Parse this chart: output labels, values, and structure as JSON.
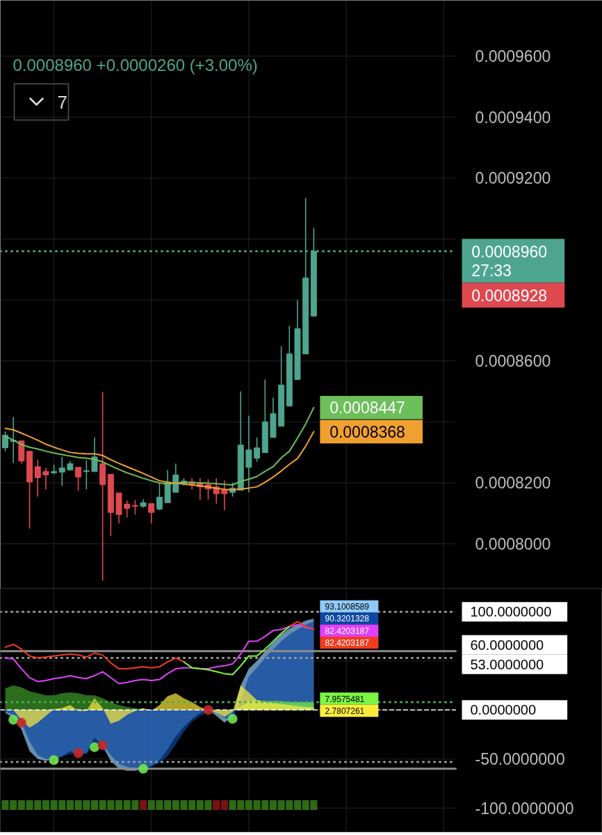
{
  "chart_data": [
    {
      "type": "candlestick",
      "subtitle": "0.0008960 +0.0000260 (+3.00%)",
      "annotations": [
        "0.0008928",
        "7"
      ],
      "categories": [
        null,
        null,
        null,
        null,
        null,
        null,
        null,
        null,
        null,
        null,
        null,
        null,
        null,
        null,
        null,
        null,
        null,
        null,
        null,
        null,
        null,
        null,
        null,
        null,
        null,
        null,
        null,
        null,
        null,
        null,
        null,
        null,
        null,
        null,
        null,
        null,
        null,
        null,
        null
      ],
      "ohlc": [
        [
          0.0008315,
          0.0008368,
          0.0008304,
          0.0008356
        ],
        [
          0.0008336,
          0.0008416,
          0.0008265,
          0.000834
        ],
        [
          0.0008338,
          0.0008338,
          0.0008263,
          0.0008272
        ],
        [
          0.0008304,
          0.0008304,
          0.000805,
          0.0008203
        ],
        [
          0.0008253,
          0.0008276,
          0.0008155,
          0.0008217
        ],
        [
          0.0008237,
          0.0008249,
          0.0008178,
          0.0008226
        ],
        [
          0.0008233,
          0.000826,
          0.0008228,
          0.0008237
        ],
        [
          0.0008235,
          0.0008285,
          0.000819,
          0.0008249
        ],
        [
          0.0008242,
          0.0008272,
          0.0008242,
          0.0008263
        ],
        [
          0.0008251,
          0.0008251,
          0.0008174,
          0.0008219
        ],
        [
          0.0008237,
          0.0008274,
          0.0008178,
          0.000824
        ],
        [
          0.0008237,
          0.0008349,
          0.0008237,
          0.0008285
        ],
        [
          0.0008263,
          0.0008498,
          0.0007879,
          0.0008194
        ],
        [
          0.0008228,
          0.0008228,
          0.0008025,
          0.0008103
        ],
        [
          0.0008167,
          0.0008167,
          0.0008067,
          0.0008096
        ],
        [
          0.000813,
          0.0008142,
          0.0008087,
          0.0008116
        ],
        [
          0.0008126,
          0.0008144,
          0.0008096,
          0.0008123
        ],
        [
          0.0008123,
          0.0008146,
          0.0008119,
          0.0008135
        ],
        [
          0.0008132,
          0.0008132,
          0.0008067,
          0.0008103
        ],
        [
          0.0008114,
          0.0008199,
          0.000811,
          0.0008153
        ],
        [
          0.0008135,
          0.0008242,
          0.0008135,
          0.0008203
        ],
        [
          0.0008169,
          0.0008263,
          0.0008169,
          0.0008226
        ],
        [
          0.0008196,
          0.0008215,
          0.0008192,
          0.0008206
        ],
        [
          0.0008203,
          0.0008215,
          0.0008178,
          0.0008194
        ],
        [
          0.0008199,
          0.0008215,
          0.0008144,
          0.0008187
        ],
        [
          0.0008194,
          0.0008212,
          0.0008146,
          0.000818
        ],
        [
          0.0008187,
          0.0008215,
          0.0008132,
          0.0008164
        ],
        [
          0.0008178,
          0.0008208,
          0.000811,
          0.0008164
        ],
        [
          0.0008169,
          0.0008201,
          0.0008155,
          0.0008183
        ],
        [
          0.0008176,
          0.00085,
          0.0008176,
          0.0008324
        ],
        [
          0.0008251,
          0.000842,
          0.0008169,
          0.0008308
        ],
        [
          0.0008281,
          0.0008349,
          0.0008269,
          0.0008315
        ],
        [
          0.0008299,
          0.0008539,
          0.0008299,
          0.00084
        ],
        [
          0.0008349,
          0.000848,
          0.0008349,
          0.0008427
        ],
        [
          0.0008386,
          0.0008648,
          0.0008386,
          0.0008521
        ],
        [
          0.0008452,
          0.0008715,
          0.0008452,
          0.0008623
        ],
        [
          0.0008539,
          0.0008799,
          0.0008539,
          0.0008706
        ],
        [
          0.0008623,
          0.0009135,
          0.0008623,
          0.0008872
        ],
        [
          0.0008747,
          0.0009037,
          0.0008747,
          0.000896
        ]
      ],
      "colors": [
        "#4da58f",
        "#4da58f",
        "#e0484f",
        "#e0484f",
        "#e0484f",
        "#e0484f",
        "#4da58f",
        "#4da58f",
        "#4da58f",
        "#e0484f",
        "#4da58f",
        "#4da58f",
        "#e0484f",
        "#e0484f",
        "#e0484f",
        "#e0484f",
        "#e0484f",
        "#4da58f",
        "#e0484f",
        "#4da58f",
        "#4da58f",
        "#4da58f",
        "#4da58f",
        "#e0484f",
        "#e0484f",
        "#e0484f",
        "#e0484f",
        "#e0484f",
        "#4da58f",
        "#4da58f",
        "#4da58f",
        "#4da58f",
        "#4da58f",
        "#4da58f",
        "#4da58f",
        "#4da58f",
        "#4da58f",
        "#4da58f",
        "#4da58f"
      ],
      "series": [
        {
          "type": "line",
          "color": "#6cbf5a",
          "values": [
            0.0008353,
            0.000834,
            0.0008326,
            0.0008317,
            0.0008311,
            0.0008304,
            0.0008298,
            0.0008293,
            0.0008288,
            0.0008283,
            0.0008281,
            0.0008277,
            0.0008269,
            0.0008256,
            0.0008244,
            0.0008233,
            0.0008224,
            0.0008215,
            0.0008207,
            0.00082,
            0.0008196,
            0.0008199,
            0.0008202,
            0.0008201,
            0.00082,
            0.0008199,
            0.0008197,
            0.0008195,
            0.0008193,
            0.0008205,
            0.0008212,
            0.0008221,
            0.0008238,
            0.0008253,
            0.0008282,
            0.0008304,
            0.0008347,
            0.0008393,
            0.0008447
          ],
          "value_labels": [
            null,
            null,
            null,
            null,
            null,
            null,
            null,
            null,
            null,
            null,
            null,
            null,
            null,
            null,
            null,
            null,
            null,
            null,
            null,
            null,
            null,
            null,
            null,
            null,
            null,
            null,
            null,
            null,
            null,
            null,
            null,
            null,
            null,
            null,
            null,
            null,
            null,
            null,
            "0.0008447"
          ]
        },
        {
          "type": "line",
          "color": "#f0a030",
          "values": [
            0.0008379,
            0.0008374,
            0.0008363,
            0.0008352,
            0.000834,
            0.0008327,
            0.0008317,
            0.0008308,
            0.00083,
            0.0008297,
            0.0008295,
            0.0008295,
            0.000829,
            0.0008276,
            0.0008264,
            0.0008253,
            0.0008242,
            0.0008231,
            0.0008219,
            0.0008207,
            0.0008202,
            0.0008199,
            0.0008196,
            0.0008193,
            0.000819,
            0.0008186,
            0.0008182,
            0.0008179,
            0.0008177,
            0.000818,
            0.0008183,
            0.0008187,
            0.0008202,
            0.0008219,
            0.0008239,
            0.0008261,
            0.000828,
            0.000832,
            0.0008368
          ],
          "value_labels": [
            null,
            null,
            null,
            null,
            null,
            null,
            null,
            null,
            null,
            null,
            null,
            null,
            null,
            null,
            null,
            null,
            null,
            null,
            null,
            null,
            null,
            null,
            null,
            null,
            null,
            null,
            null,
            null,
            null,
            null,
            null,
            null,
            null,
            null,
            null,
            null,
            null,
            null,
            "0.0008368"
          ]
        }
      ],
      "ylim": [
        0.0007854,
        0.0009783
      ],
      "yticks": [
        {
          "value": 0.0008,
          "label": "0.0008000"
        },
        {
          "value": 0.00082,
          "label": "0.0008200"
        },
        {
          "value": 0.00084,
          "label": null
        },
        {
          "value": 0.00086,
          "label": "0.0008600"
        },
        {
          "value": 0.00088,
          "label": null
        },
        {
          "value": 0.0009,
          "label": null
        },
        {
          "value": 0.00092,
          "label": "0.0009200"
        },
        {
          "value": 0.00094,
          "label": "0.0009400"
        },
        {
          "value": 0.00096,
          "label": "0.0009600"
        }
      ],
      "ref_lines": [
        {
          "axis": "y",
          "value": 0.000896,
          "label": "0.0008960\n27:33",
          "color": "#4da58f",
          "line_style": "dotted"
        }
      ],
      "grid": true,
      "tick_labels": "y"
    },
    {
      "type": "area",
      "categories": [
        null,
        null,
        null,
        null,
        null,
        null,
        null,
        null,
        null,
        null,
        null,
        null,
        null,
        null,
        null,
        null,
        null,
        null,
        null,
        null,
        null,
        null,
        null,
        null,
        null,
        null,
        null,
        null,
        null,
        null,
        null,
        null,
        null,
        null,
        null,
        null,
        null,
        null,
        null
      ],
      "series": [
        {
          "type": "area",
          "color": "#90caf9",
          "values": [
            -3,
            -8,
            -20,
            -42,
            -50,
            -52,
            -50,
            -47,
            -42,
            -44,
            -44,
            -28,
            -37,
            -52,
            -60,
            -62,
            -62,
            -60,
            -57,
            -51,
            -40,
            -27,
            -17,
            -9,
            -3,
            0,
            -6,
            -13,
            -7,
            25,
            42,
            50,
            60,
            69,
            77,
            83,
            87,
            91,
            93.1008589
          ],
          "value_labels": [
            null,
            null,
            null,
            null,
            null,
            null,
            null,
            null,
            null,
            null,
            null,
            null,
            null,
            null,
            null,
            null,
            null,
            null,
            null,
            null,
            null,
            null,
            null,
            null,
            null,
            null,
            null,
            null,
            null,
            null,
            null,
            null,
            null,
            null,
            null,
            null,
            null,
            null,
            "93.1008589"
          ]
        },
        {
          "type": "area",
          "color": "#0d47a1",
          "values": [
            -2,
            -5,
            -13,
            -32,
            -46,
            -50,
            -50,
            -48,
            -45,
            -45,
            -45,
            -35,
            -35,
            -46,
            -55,
            -58,
            -60,
            -60,
            -58,
            -54,
            -47,
            -35,
            -22,
            -12,
            -6,
            -2,
            -3,
            -8,
            -10,
            10,
            34,
            43,
            53,
            62,
            70,
            77,
            82,
            87,
            90.3201328
          ],
          "value_labels": [
            null,
            null,
            null,
            null,
            null,
            null,
            null,
            null,
            null,
            null,
            null,
            null,
            null,
            null,
            null,
            null,
            null,
            null,
            null,
            null,
            null,
            null,
            null,
            null,
            null,
            null,
            null,
            null,
            null,
            null,
            null,
            null,
            null,
            null,
            null,
            null,
            null,
            null,
            "90.3201328"
          ]
        },
        {
          "type": "area",
          "color": "#3f9a2a",
          "values": [
            22,
            25,
            23,
            19,
            17,
            15,
            15,
            17,
            18,
            17,
            15,
            15,
            12,
            8,
            5,
            3,
            2,
            1,
            0,
            null,
            null,
            null,
            null,
            null,
            null,
            null,
            null,
            null,
            null,
            null,
            null,
            null,
            null,
            null,
            null,
            null,
            null,
            null,
            null
          ]
        },
        {
          "type": "area",
          "color": "#7cf545",
          "values": [
            null,
            null,
            null,
            null,
            null,
            null,
            null,
            null,
            null,
            null,
            null,
            null,
            null,
            null,
            null,
            null,
            null,
            null,
            null,
            null,
            null,
            null,
            null,
            null,
            null,
            null,
            null,
            null,
            0,
            3,
            9,
            10,
            9,
            9,
            9,
            8,
            8,
            8,
            7.9575481
          ],
          "value_labels": [
            null,
            null,
            null,
            null,
            null,
            null,
            null,
            null,
            null,
            null,
            null,
            null,
            null,
            null,
            null,
            null,
            null,
            null,
            null,
            null,
            null,
            null,
            null,
            null,
            null,
            null,
            null,
            null,
            null,
            null,
            null,
            null,
            null,
            null,
            null,
            null,
            null,
            null,
            "7.9575481"
          ]
        },
        {
          "type": "area",
          "color": "#ffeb3b",
          "values": [
            0,
            0,
            -10,
            -18,
            -13,
            -6,
            1,
            2,
            5,
            -1,
            -1,
            12,
            2,
            -14,
            -11,
            -5,
            -1,
            2,
            -1,
            5,
            14,
            17,
            12,
            8,
            3,
            0,
            -3,
            -7,
            -2,
            25,
            18,
            10,
            8,
            7,
            6,
            5,
            4,
            3,
            2.7807261
          ],
          "value_labels": [
            null,
            null,
            null,
            null,
            null,
            null,
            null,
            null,
            null,
            null,
            null,
            null,
            null,
            null,
            null,
            null,
            null,
            null,
            null,
            null,
            null,
            null,
            null,
            null,
            null,
            null,
            null,
            null,
            null,
            null,
            null,
            null,
            null,
            null,
            null,
            null,
            null,
            null,
            "2.7807261"
          ]
        },
        {
          "type": "line",
          "color": "#e040fb",
          "values": [
            53,
            52,
            42,
            33,
            29,
            30,
            32,
            33,
            35,
            33,
            32,
            35,
            39,
            33,
            27,
            28,
            30,
            31,
            30,
            31,
            37,
            42,
            43,
            43,
            42,
            42,
            44,
            45,
            47,
            57,
            70,
            70,
            75,
            81,
            82,
            85,
            87,
            84,
            82.4203187
          ],
          "value_labels": [
            null,
            null,
            null,
            null,
            null,
            null,
            null,
            null,
            null,
            null,
            null,
            null,
            null,
            null,
            null,
            null,
            null,
            null,
            null,
            null,
            null,
            null,
            null,
            null,
            null,
            null,
            null,
            null,
            null,
            null,
            null,
            null,
            null,
            null,
            null,
            null,
            null,
            null,
            "82.4203187"
          ]
        },
        {
          "type": "line",
          "color": "#f23b1f",
          "values": [
            64,
            67,
            62,
            55,
            53,
            54,
            55,
            56,
            57,
            56,
            54,
            58,
            56,
            48,
            42,
            42,
            43,
            44,
            43,
            44,
            49,
            53,
            49,
            null,
            null,
            null,
            null,
            null,
            null,
            null,
            null,
            null,
            null,
            null,
            null,
            85,
            90,
            85,
            82.4203187
          ],
          "value_labels": [
            null,
            null,
            null,
            null,
            null,
            null,
            null,
            null,
            null,
            null,
            null,
            null,
            null,
            null,
            null,
            null,
            null,
            null,
            null,
            null,
            null,
            null,
            null,
            null,
            null,
            null,
            null,
            null,
            null,
            null,
            null,
            null,
            null,
            null,
            null,
            null,
            null,
            null,
            "82.4203187"
          ]
        },
        {
          "type": "line",
          "color": "#7cfc3a",
          "values": [
            null,
            null,
            null,
            null,
            null,
            null,
            null,
            null,
            null,
            null,
            null,
            null,
            null,
            null,
            null,
            null,
            null,
            null,
            null,
            null,
            null,
            null,
            49,
            43,
            42,
            41,
            39,
            37,
            36,
            45,
            55,
            55,
            62,
            70,
            78,
            85,
            null,
            null,
            null
          ]
        },
        {
          "type": "scatter",
          "marker": "circle",
          "color": "#6ee650",
          "values": [
            null,
            -10,
            null,
            null,
            null,
            null,
            -51,
            null,
            null,
            null,
            null,
            -38,
            null,
            null,
            null,
            null,
            null,
            -60,
            null,
            null,
            null,
            null,
            null,
            null,
            null,
            null,
            null,
            null,
            -9,
            null,
            null,
            null,
            null,
            null,
            null,
            null,
            null,
            null,
            null
          ]
        },
        {
          "type": "scatter",
          "marker": "circle",
          "color": "#c62828",
          "values": [
            null,
            null,
            -13,
            null,
            null,
            null,
            null,
            null,
            null,
            -44,
            null,
            null,
            -36,
            null,
            null,
            null,
            null,
            null,
            null,
            null,
            null,
            null,
            null,
            null,
            null,
            0,
            null,
            null,
            null,
            null,
            null,
            null,
            null,
            null,
            null,
            null,
            null,
            null,
            null
          ]
        },
        {
          "type": "bar",
          "colors": [
            "#2e6b14",
            "#2e6b14",
            "#2e6b14",
            "#2e6b14",
            "#2e6b14",
            "#2e6b14",
            "#2e6b14",
            "#2e6b14",
            "#2e6b14",
            "#2e6b14",
            "#2e6b14",
            "#2e6b14",
            "#2e6b14",
            "#2e6b14",
            "#2e6b14",
            "#2e6b14",
            "#2e6b14",
            "#7a1212",
            "#2e6b14",
            "#2e6b14",
            "#2e6b14",
            "#2e6b14",
            "#2e6b14",
            "#2e6b14",
            "#2e6b14",
            "#2e6b14",
            "#7a1212",
            "#7a1212",
            "#2e6b14",
            "#2e6b14",
            "#2e6b14",
            "#2e6b14",
            "#2e6b14",
            "#2e6b14",
            "#2e6b14",
            "#2e6b14",
            "#2e6b14",
            "#2e6b14",
            "#2e6b14"
          ],
          "base": [
            -102,
            -102,
            -102,
            -102,
            -102,
            -102,
            -102,
            -102,
            -102,
            -102,
            -102,
            -102,
            -102,
            -102,
            -102,
            -102,
            -102,
            -102,
            -102,
            -102,
            -102,
            -102,
            -102,
            -102,
            -102,
            -102,
            -102,
            -102,
            -102,
            -102,
            -102,
            -102,
            -102,
            -102,
            -102,
            -102,
            -102,
            -102,
            -102
          ],
          "values": [
            10,
            10,
            10,
            10,
            10,
            10,
            10,
            10,
            10,
            10,
            10,
            10,
            10,
            10,
            10,
            10,
            10,
            10,
            10,
            10,
            10,
            10,
            10,
            10,
            10,
            10,
            10,
            10,
            10,
            10,
            10,
            10,
            10,
            10,
            10,
            10,
            10,
            10,
            10
          ]
        }
      ],
      "ylim": [
        -125,
        124
      ],
      "yticks": [
        {
          "value": 100,
          "label": null
        },
        {
          "value": 50,
          "label": null
        },
        {
          "value": 0,
          "label": null
        },
        {
          "value": -50,
          "label": "-50.0000000"
        },
        {
          "value": -100,
          "label": "-100.0000000"
        }
      ],
      "ref_lines": [
        {
          "axis": "y",
          "value": 100,
          "label": "100.0000000",
          "color": "#9e9e9e",
          "line_style": "dotted"
        },
        {
          "axis": "y",
          "value": 60,
          "label": "60.0000000",
          "color": "#8c8c8c",
          "line_style": "solid"
        },
        {
          "axis": "y",
          "value": 53,
          "label": "53.0000000",
          "color": "#9e9e9e",
          "line_style": "dotted"
        },
        {
          "axis": "y",
          "value": 7.9575481,
          "color": "#4caf50",
          "line_style": "dotted"
        },
        {
          "axis": "y",
          "value": 0,
          "label": "0.0000000",
          "color": "#ffffff",
          "line_style": "dashed"
        },
        {
          "axis": "y",
          "value": -53,
          "color": "#9e9e9e",
          "line_style": "dotted"
        },
        {
          "axis": "y",
          "value": -60,
          "color": "#8c8c8c",
          "line_style": "solid"
        }
      ],
      "grid": true,
      "tick_labels": "y"
    }
  ]
}
